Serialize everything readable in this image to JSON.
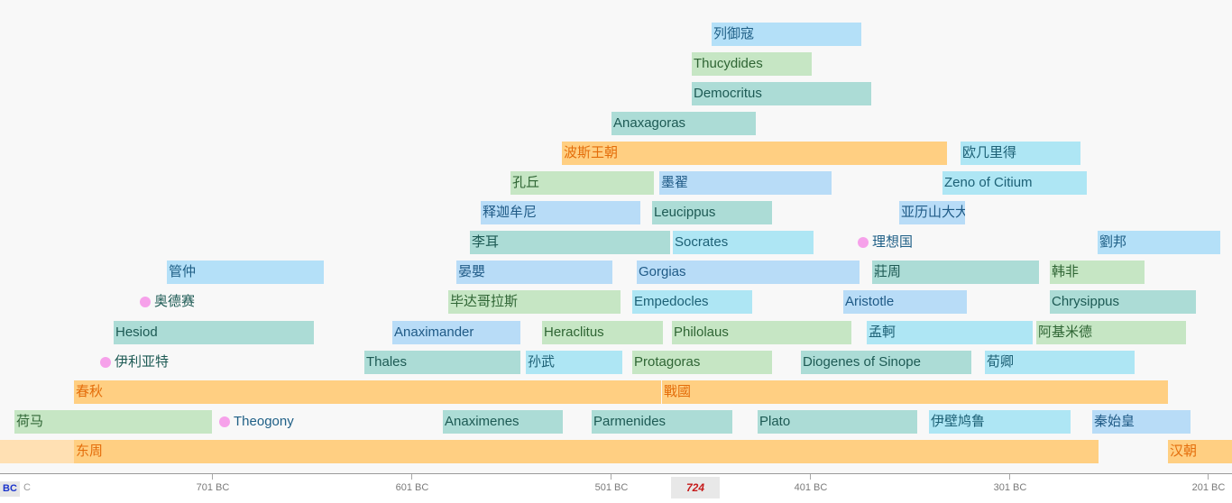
{
  "events": [
    {
      "label": "列御寇",
      "color": "blue"
    },
    {
      "label": "Thucydides",
      "color": "green"
    },
    {
      "label": "Democritus",
      "color": "teal"
    },
    {
      "label": "Anaxagoras",
      "color": "teal"
    },
    {
      "label": "波斯王朝",
      "color": "orange"
    },
    {
      "label": "欧几里得",
      "color": "cyan"
    },
    {
      "label": "孔丘",
      "color": "green"
    },
    {
      "label": "墨翟",
      "color": "sky"
    },
    {
      "label": "Zeno of Citium",
      "color": "cyan"
    },
    {
      "label": "释迦牟尼",
      "color": "sky"
    },
    {
      "label": "Leucippus",
      "color": "teal"
    },
    {
      "label": "亚历山大大帝",
      "color": "sky"
    },
    {
      "label": "李耳",
      "color": "teal"
    },
    {
      "label": "Socrates",
      "color": "cyan"
    },
    {
      "label": "劉邦",
      "color": "blue"
    },
    {
      "label": "管仲",
      "color": "blue"
    },
    {
      "label": "晏嬰",
      "color": "sky"
    },
    {
      "label": "Gorgias",
      "color": "sky"
    },
    {
      "label": "莊周",
      "color": "teal"
    },
    {
      "label": "韩非",
      "color": "green"
    },
    {
      "label": "毕达哥拉斯",
      "color": "green"
    },
    {
      "label": "Empedocles",
      "color": "cyan"
    },
    {
      "label": "Aristotle",
      "color": "sky"
    },
    {
      "label": "Chrysippus",
      "color": "teal"
    },
    {
      "label": "Hesiod",
      "color": "teal"
    },
    {
      "label": "Anaximander",
      "color": "sky"
    },
    {
      "label": "Heraclitus",
      "color": "green"
    },
    {
      "label": "Philolaus",
      "color": "green"
    },
    {
      "label": "孟軻",
      "color": "cyan"
    },
    {
      "label": "阿基米德",
      "color": "green"
    },
    {
      "label": "Thales",
      "color": "teal"
    },
    {
      "label": "孙武",
      "color": "cyan"
    },
    {
      "label": "Protagoras",
      "color": "green"
    },
    {
      "label": "Diogenes of Sinope",
      "color": "teal"
    },
    {
      "label": "荀卿",
      "color": "cyan"
    },
    {
      "label": "春秋",
      "color": "orange"
    },
    {
      "label": "戰國",
      "color": "orange"
    },
    {
      "label": "荷马",
      "color": "green"
    },
    {
      "label": "Anaximenes",
      "color": "teal"
    },
    {
      "label": "Parmenides",
      "color": "teal"
    },
    {
      "label": "Plato",
      "color": "teal"
    },
    {
      "label": "伊壁鸠鲁",
      "color": "cyan"
    },
    {
      "label": "秦始皇",
      "color": "sky"
    },
    {
      "label": "",
      "color": "peach"
    },
    {
      "label": "东周",
      "color": "orange"
    },
    {
      "label": "汉朝",
      "color": "orange"
    }
  ],
  "points": [
    {
      "label": "理想国",
      "color": "blue"
    },
    {
      "label": "奥德赛",
      "color": "teal"
    },
    {
      "label": "伊利亚特",
      "color": "teal"
    },
    {
      "label": "Theogony",
      "color": "blue"
    }
  ],
  "axis": {
    "era_label": "BC",
    "era_suffix": "C",
    "ticks": [
      "701 BC",
      "601 BC",
      "501 BC",
      "401 BC",
      "301 BC",
      "201 BC"
    ],
    "cursor_label": "724"
  },
  "colors": {
    "blue": "#b4e0f8",
    "green": "#c6e6c4",
    "teal": "#acdcd6",
    "orange": "#ffcf82",
    "peach": "#ffe0b3",
    "cyan": "#aee6f4",
    "sky": "#b8dcf7",
    "point_dot": "#f6a1ea"
  }
}
